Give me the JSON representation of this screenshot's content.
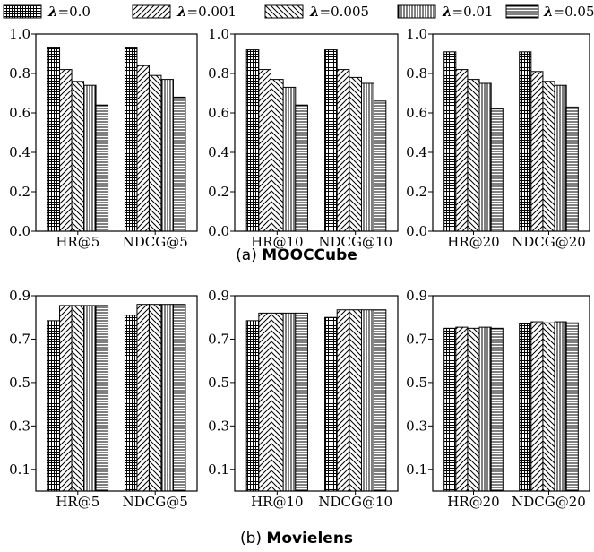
{
  "legend": [
    {
      "symbol": "λ",
      "value": "=0.0",
      "pattern": "grid"
    },
    {
      "symbol": "λ",
      "value": "=0.001",
      "pattern": "diag-ne"
    },
    {
      "symbol": "λ",
      "value": "=0.005",
      "pattern": "diag-nw"
    },
    {
      "symbol": "λ",
      "value": "=0.01",
      "pattern": "vert"
    },
    {
      "symbol": "λ",
      "value": "=0.05",
      "pattern": "horiz"
    }
  ],
  "captions": [
    {
      "prefix": "(a) ",
      "name": "MOOCCube"
    },
    {
      "prefix": "(b) ",
      "name": "Movielens"
    }
  ],
  "chart_data": [
    {
      "type": "bar",
      "ylim": [
        0,
        1.0
      ],
      "yticks": [
        "0.0",
        "0.2",
        "0.4",
        "0.6",
        "0.8",
        "1.0"
      ],
      "ytick_values": [
        0,
        0.2,
        0.4,
        0.6,
        0.8,
        1.0
      ],
      "categories": [
        "HR@5",
        "NDCG@5"
      ],
      "series": [
        {
          "values": [
            0.93,
            0.93
          ]
        },
        {
          "values": [
            0.82,
            0.84
          ]
        },
        {
          "values": [
            0.76,
            0.79
          ]
        },
        {
          "values": [
            0.74,
            0.77
          ]
        },
        {
          "values": [
            0.64,
            0.68
          ]
        }
      ]
    },
    {
      "type": "bar",
      "ylim": [
        0,
        1.0
      ],
      "yticks": [
        "0.0",
        "0.2",
        "0.4",
        "0.6",
        "0.8",
        "1.0"
      ],
      "ytick_values": [
        0,
        0.2,
        0.4,
        0.6,
        0.8,
        1.0
      ],
      "categories": [
        "HR@10",
        "NDCG@10"
      ],
      "series": [
        {
          "values": [
            0.92,
            0.92
          ]
        },
        {
          "values": [
            0.82,
            0.82
          ]
        },
        {
          "values": [
            0.77,
            0.78
          ]
        },
        {
          "values": [
            0.73,
            0.75
          ]
        },
        {
          "values": [
            0.64,
            0.66
          ]
        }
      ]
    },
    {
      "type": "bar",
      "ylim": [
        0,
        1.0
      ],
      "yticks": [
        "0.0",
        "0.2",
        "0.4",
        "0.6",
        "0.8",
        "1.0"
      ],
      "ytick_values": [
        0,
        0.2,
        0.4,
        0.6,
        0.8,
        1.0
      ],
      "categories": [
        "HR@20",
        "NDCG@20"
      ],
      "series": [
        {
          "values": [
            0.91,
            0.91
          ]
        },
        {
          "values": [
            0.82,
            0.81
          ]
        },
        {
          "values": [
            0.77,
            0.76
          ]
        },
        {
          "values": [
            0.75,
            0.74
          ]
        },
        {
          "values": [
            0.62,
            0.63
          ]
        }
      ]
    },
    {
      "type": "bar",
      "ylim": [
        0.0,
        0.9
      ],
      "yticks": [
        "0.1",
        "0.3",
        "0.5",
        "0.7",
        "0.9"
      ],
      "ytick_values": [
        0.1,
        0.3,
        0.5,
        0.7,
        0.9
      ],
      "categories": [
        "HR@5",
        "NDCG@5"
      ],
      "series": [
        {
          "values": [
            0.785,
            0.81
          ]
        },
        {
          "values": [
            0.855,
            0.86
          ]
        },
        {
          "values": [
            0.855,
            0.86
          ]
        },
        {
          "values": [
            0.855,
            0.86
          ]
        },
        {
          "values": [
            0.855,
            0.86
          ]
        }
      ]
    },
    {
      "type": "bar",
      "ylim": [
        0.0,
        0.9
      ],
      "yticks": [
        "0.1",
        "0.3",
        "0.5",
        "0.7",
        "0.9"
      ],
      "ytick_values": [
        0.1,
        0.3,
        0.5,
        0.7,
        0.9
      ],
      "categories": [
        "HR@10",
        "NDCG@10"
      ],
      "series": [
        {
          "values": [
            0.785,
            0.8
          ]
        },
        {
          "values": [
            0.82,
            0.835
          ]
        },
        {
          "values": [
            0.82,
            0.835
          ]
        },
        {
          "values": [
            0.82,
            0.835
          ]
        },
        {
          "values": [
            0.82,
            0.835
          ]
        }
      ]
    },
    {
      "type": "bar",
      "ylim": [
        0.0,
        0.9
      ],
      "yticks": [
        "0.1",
        "0.3",
        "0.5",
        "0.7",
        "0.9"
      ],
      "ytick_values": [
        0.1,
        0.3,
        0.5,
        0.7,
        0.9
      ],
      "categories": [
        "HR@20",
        "NDCG@20"
      ],
      "series": [
        {
          "values": [
            0.75,
            0.77
          ]
        },
        {
          "values": [
            0.755,
            0.78
          ]
        },
        {
          "values": [
            0.75,
            0.775
          ]
        },
        {
          "values": [
            0.755,
            0.78
          ]
        },
        {
          "values": [
            0.75,
            0.775
          ]
        }
      ]
    }
  ]
}
